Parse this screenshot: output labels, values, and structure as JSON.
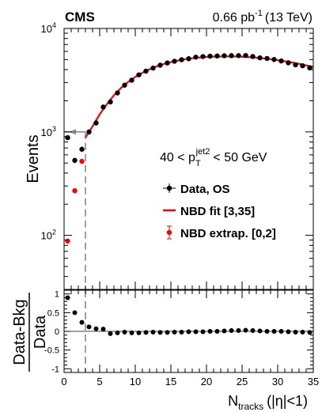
{
  "header": {
    "experiment": "CMS",
    "lumi_value": "0.66 pb",
    "lumi_exp": "-1",
    "lumi_energy": "(13 TeV)"
  },
  "selection": {
    "lead": "40 < p",
    "sub": "T",
    "sup": "jet2",
    "tail": "< 50 GeV"
  },
  "legend": [
    {
      "label": "Data, OS",
      "style": "marker",
      "color": "#000000"
    },
    {
      "label": "NBD fit [3,35]",
      "style": "line",
      "color": "#ff0000"
    },
    {
      "label": "NBD extrap. [0,2]",
      "style": "marker-err",
      "color": "#ff0000"
    }
  ],
  "chart_data": [
    {
      "type": "scatter",
      "ylabel": "Events",
      "y_scale": "log",
      "xlim": [
        0,
        35
      ],
      "ylim": [
        30,
        10000
      ],
      "y_tick_labels": [
        {
          "v": 100,
          "base": "10",
          "exp": "2"
        },
        {
          "v": 1000,
          "base": "10",
          "exp": "3"
        },
        {
          "v": 10000,
          "base": "10",
          "exp": "4"
        }
      ],
      "series": [
        {
          "name": "Data, OS",
          "color": "#000000",
          "x": [
            0,
            1,
            2,
            3,
            4,
            5,
            6,
            7,
            8,
            9,
            10,
            11,
            12,
            13,
            14,
            15,
            16,
            17,
            18,
            19,
            20,
            21,
            22,
            23,
            24,
            25,
            26,
            27,
            28,
            29,
            30,
            31,
            32,
            33,
            34
          ],
          "y": [
            880,
            530,
            680,
            1000,
            1220,
            1740,
            1950,
            2380,
            2830,
            3160,
            3560,
            3870,
            4140,
            4410,
            4640,
            4820,
            4990,
            5100,
            5280,
            5350,
            5400,
            5420,
            5450,
            5460,
            5470,
            5480,
            5360,
            5200,
            5130,
            5010,
            4850,
            4660,
            4450,
            4360,
            4160
          ]
        },
        {
          "name": "NBD fit [3,35]",
          "color": "#ff0000",
          "style": "line",
          "x": [
            3,
            3.5,
            4,
            5,
            6,
            7,
            8,
            9,
            10,
            11,
            12,
            13,
            14,
            15,
            16,
            17,
            18,
            19,
            20,
            21,
            22,
            23,
            24,
            25,
            26,
            27,
            28,
            29,
            30,
            31,
            32,
            33,
            34,
            35
          ],
          "y": [
            880,
            1000,
            1130,
            1480,
            1850,
            2260,
            2660,
            3040,
            3400,
            3730,
            4030,
            4300,
            4530,
            4730,
            4900,
            5040,
            5150,
            5240,
            5300,
            5340,
            5360,
            5370,
            5360,
            5330,
            5280,
            5220,
            5140,
            5050,
            4940,
            4820,
            4690,
            4550,
            4400,
            4250
          ]
        },
        {
          "name": "NBD extrap. [0,2]",
          "color": "#ff0000",
          "x": [
            0,
            1,
            2
          ],
          "y": [
            88,
            270,
            520
          ]
        }
      ],
      "annotations": {
        "cut_x": 3,
        "arrow_level": 1000
      }
    },
    {
      "type": "scatter",
      "xlabel": "N",
      "xlabel_sub": "tracks",
      "xlabel_tail": "(|η|<1)",
      "ylabel": "Data-Bkg",
      "ylabel_den": "Data",
      "xlim": [
        0,
        35
      ],
      "ylim": [
        -1.1,
        1.1
      ],
      "x_tick_labels": [
        "0",
        "5",
        "10",
        "15",
        "20",
        "25",
        "30",
        "35"
      ],
      "y_tick_labels": [
        "-1",
        "-0.5",
        "0",
        "0.5",
        "1"
      ],
      "series": [
        {
          "name": "ratio",
          "color": "#000000",
          "x": [
            0,
            1,
            2,
            3,
            4,
            5,
            6,
            7,
            8,
            9,
            10,
            11,
            12,
            13,
            14,
            15,
            16,
            17,
            18,
            19,
            20,
            21,
            22,
            23,
            24,
            25,
            26,
            27,
            28,
            29,
            30,
            31,
            32,
            33,
            34
          ],
          "y": [
            0.9,
            0.5,
            0.24,
            0.12,
            0.07,
            0.06,
            -0.06,
            -0.04,
            -0.02,
            -0.04,
            -0.04,
            -0.03,
            -0.02,
            -0.03,
            -0.03,
            -0.02,
            -0.02,
            -0.01,
            -0.01,
            -0.01,
            0,
            0,
            0.01,
            0.02,
            0.02,
            0.03,
            0.02,
            0.01,
            0,
            0,
            0,
            -0.01,
            -0.02,
            -0.02,
            -0.03
          ]
        }
      ]
    }
  ]
}
